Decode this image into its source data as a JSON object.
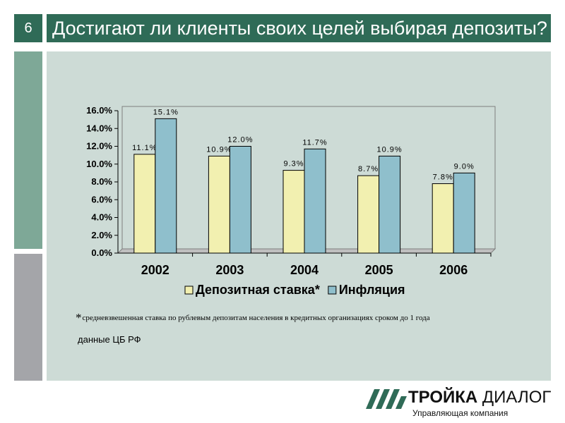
{
  "slide": {
    "page_number": "6",
    "title": "Достигают ли клиенты своих целей выбирая депозиты?"
  },
  "colors": {
    "header": "#2f6b57",
    "sidebar_top": "#7ea897",
    "sidebar_bottom": "#a4a5a9",
    "content_bg": "#cddbd6",
    "series_deposit": "#f2f0b0",
    "series_inflation": "#8fbfcc"
  },
  "chart_data": {
    "type": "bar",
    "categories": [
      "2002",
      "2003",
      "2004",
      "2005",
      "2006"
    ],
    "series": [
      {
        "name": "Депозитная ставка*",
        "values": [
          11.1,
          10.9,
          9.3,
          8.7,
          7.8
        ],
        "labels": [
          "11.1%",
          "10.9%",
          "9.3%",
          "8.7%",
          "7.8%"
        ]
      },
      {
        "name": "Инфляция",
        "values": [
          15.1,
          12.0,
          11.7,
          10.9,
          9.0
        ],
        "labels": [
          "15.1%",
          "12.0%",
          "11.7%",
          "10.9%",
          "9.0%"
        ]
      }
    ],
    "y_ticks": [
      "0.0%",
      "2.0%",
      "4.0%",
      "6.0%",
      "8.0%",
      "10.0%",
      "12.0%",
      "14.0%",
      "16.0%"
    ],
    "ylim": [
      0,
      16
    ],
    "grid": false,
    "legend_position": "bottom"
  },
  "footnote": {
    "marker": "*",
    "text": "средневзвешенная ставка по рублевым депозитам населения в кредитных организациях сроком до 1 года"
  },
  "source": "данные ЦБ РФ",
  "logo": {
    "name_part1": "ТРОЙКА",
    "name_part2": "ДИАЛОГ",
    "subtitle": "Управляющая компания"
  }
}
